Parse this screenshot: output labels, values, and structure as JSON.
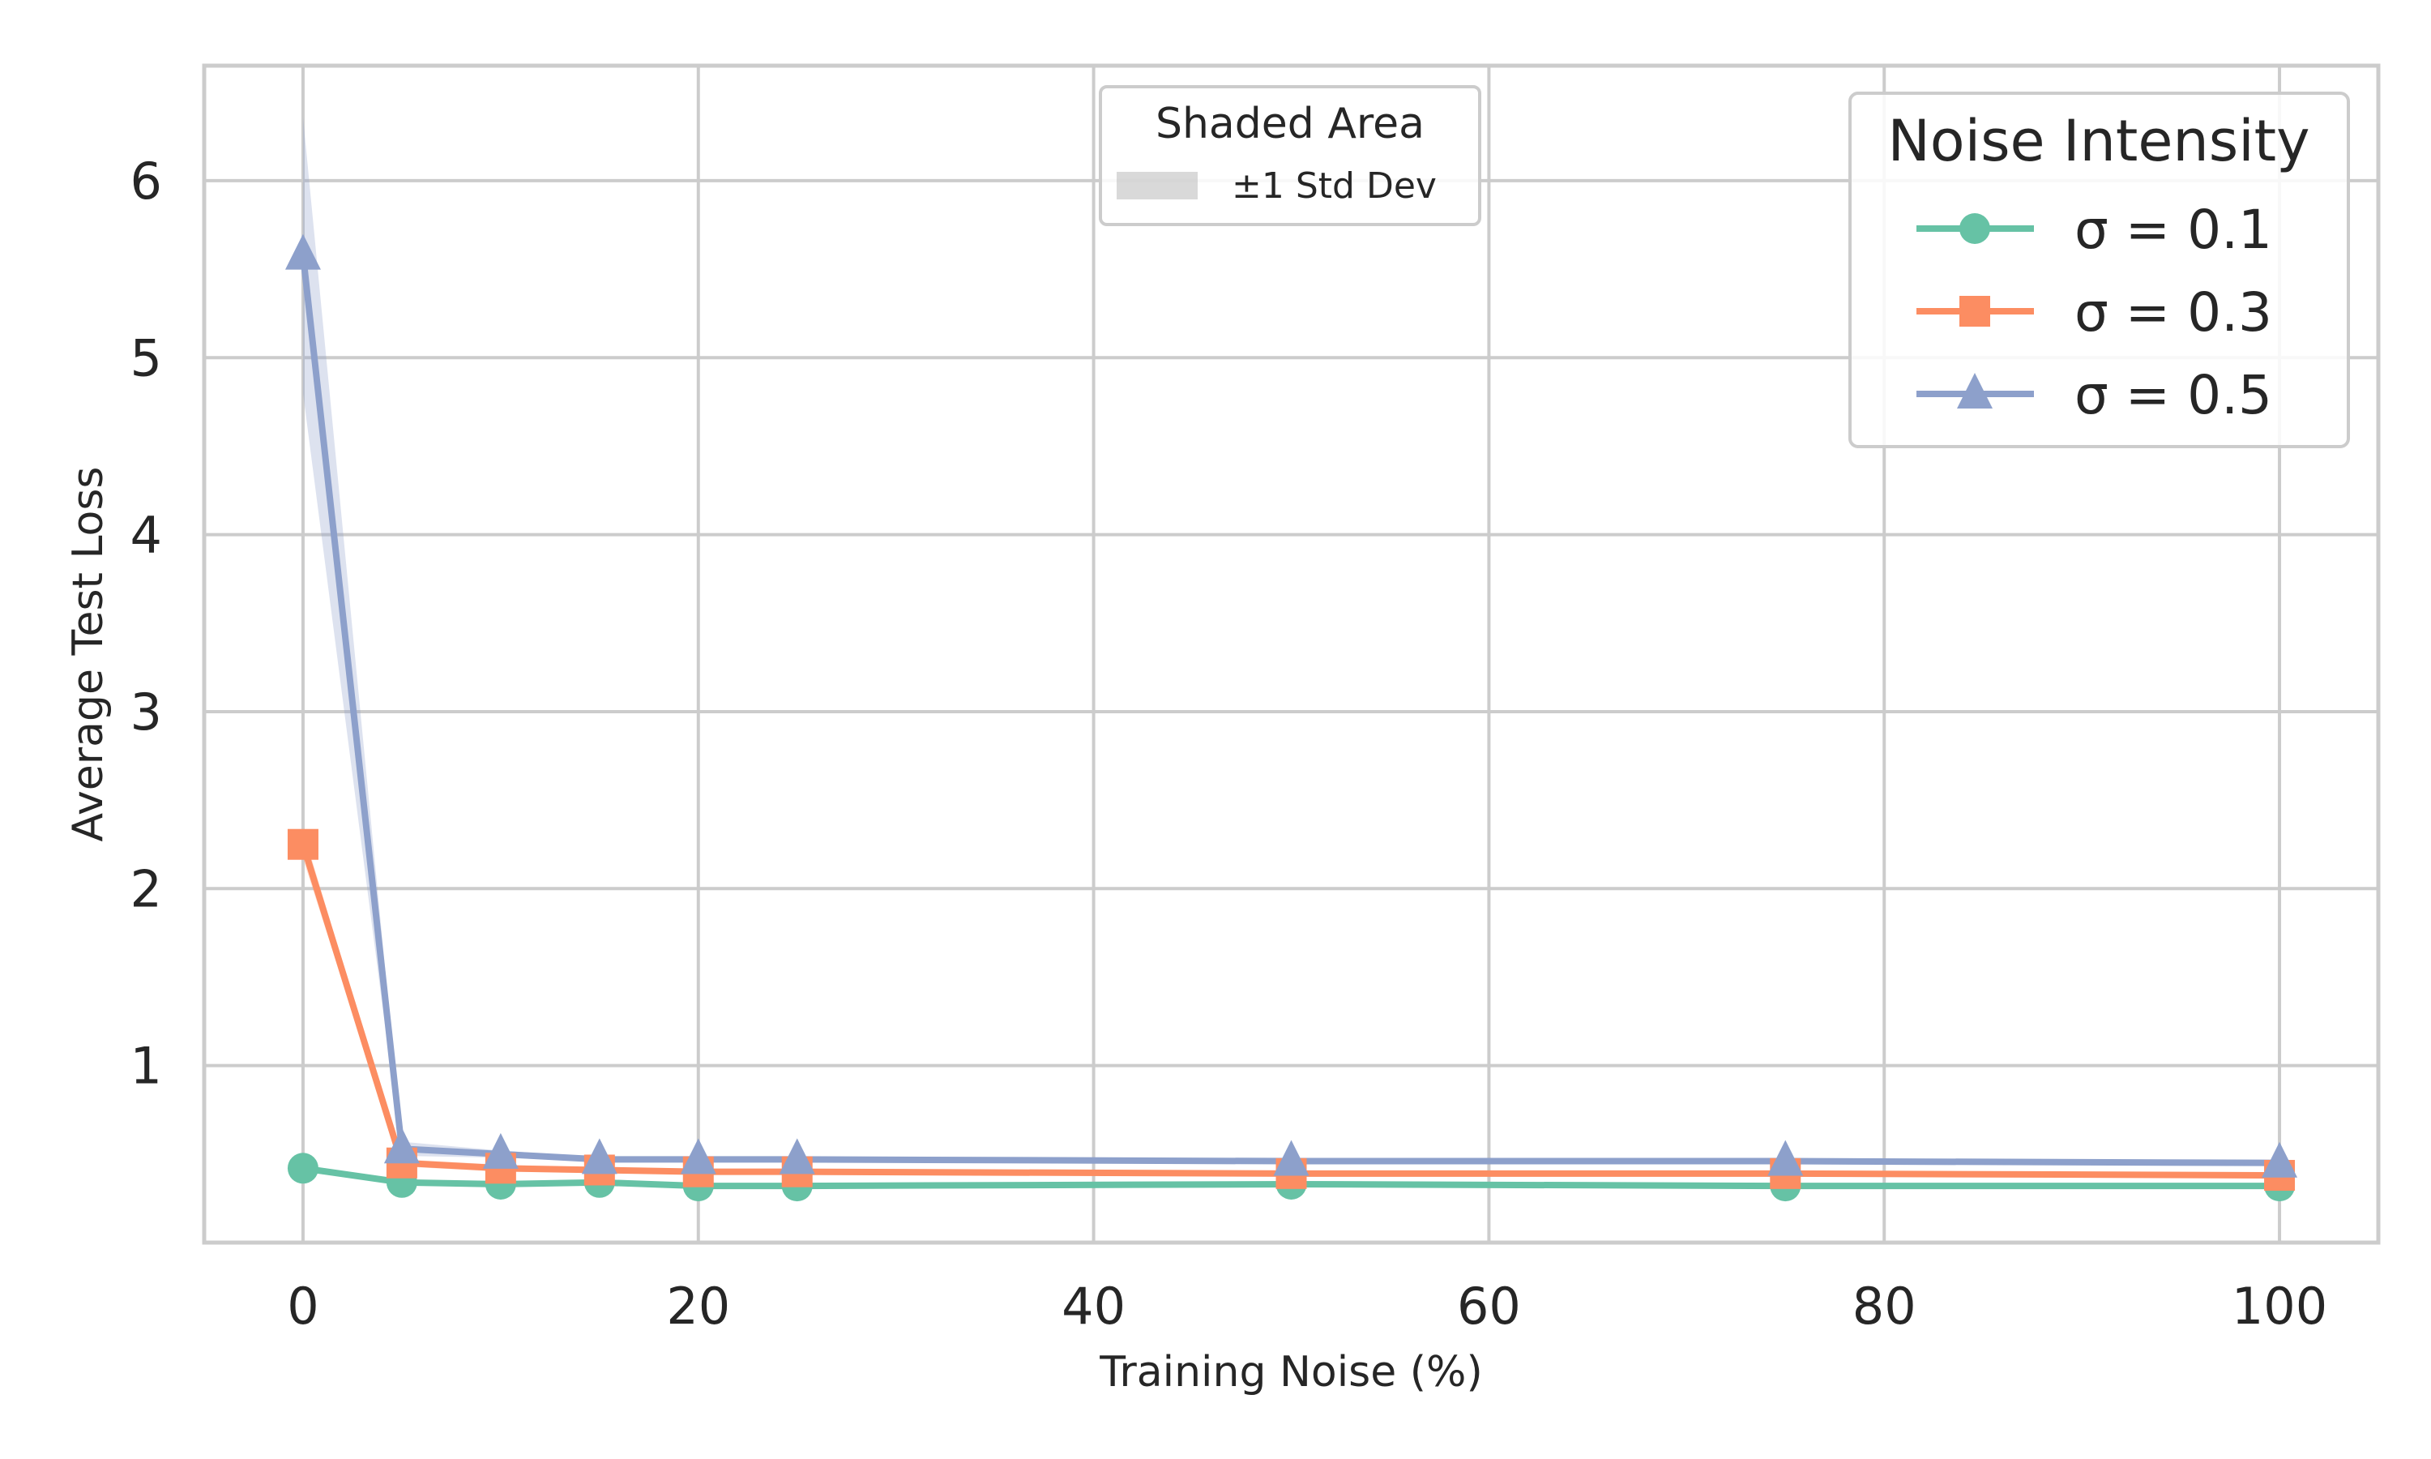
{
  "chart_data": {
    "type": "line",
    "xlabel": "Training Noise (%)",
    "ylabel": "Average Test Loss",
    "xlim": [
      -5,
      105
    ],
    "ylim": [
      0.0,
      6.65
    ],
    "xticks": [
      0,
      20,
      40,
      60,
      80,
      100
    ],
    "yticks": [
      1,
      2,
      3,
      4,
      5,
      6
    ],
    "grid": true,
    "x": [
      0,
      5,
      10,
      15,
      20,
      25,
      50,
      75,
      100
    ],
    "series": [
      {
        "name": "σ = 0.1",
        "color": "#66c2a5",
        "marker": "circle",
        "values": [
          0.42,
          0.34,
          0.33,
          0.34,
          0.32,
          0.32,
          0.33,
          0.32,
          0.32
        ],
        "std": [
          0.02,
          0.01,
          0.01,
          0.01,
          0.01,
          0.01,
          0.01,
          0.01,
          0.01
        ]
      },
      {
        "name": "σ = 0.3",
        "color": "#fc8d62",
        "marker": "square",
        "values": [
          2.25,
          0.45,
          0.42,
          0.41,
          0.4,
          0.4,
          0.39,
          0.39,
          0.38
        ],
        "std": [
          0.08,
          0.02,
          0.02,
          0.01,
          0.01,
          0.01,
          0.01,
          0.01,
          0.01
        ]
      },
      {
        "name": "σ = 0.5",
        "color": "#8da0cb",
        "marker": "triangle",
        "values": [
          5.58,
          0.53,
          0.5,
          0.47,
          0.47,
          0.47,
          0.46,
          0.46,
          0.45
        ],
        "std": [
          0.78,
          0.04,
          0.02,
          0.01,
          0.01,
          0.01,
          0.01,
          0.01,
          0.01
        ]
      }
    ],
    "legend": {
      "title": "Noise Intensity",
      "placement": "top-right"
    },
    "shade_legend": {
      "title": "Shaded Area",
      "label": "±1 Std Dev",
      "placement": "top-center"
    }
  }
}
